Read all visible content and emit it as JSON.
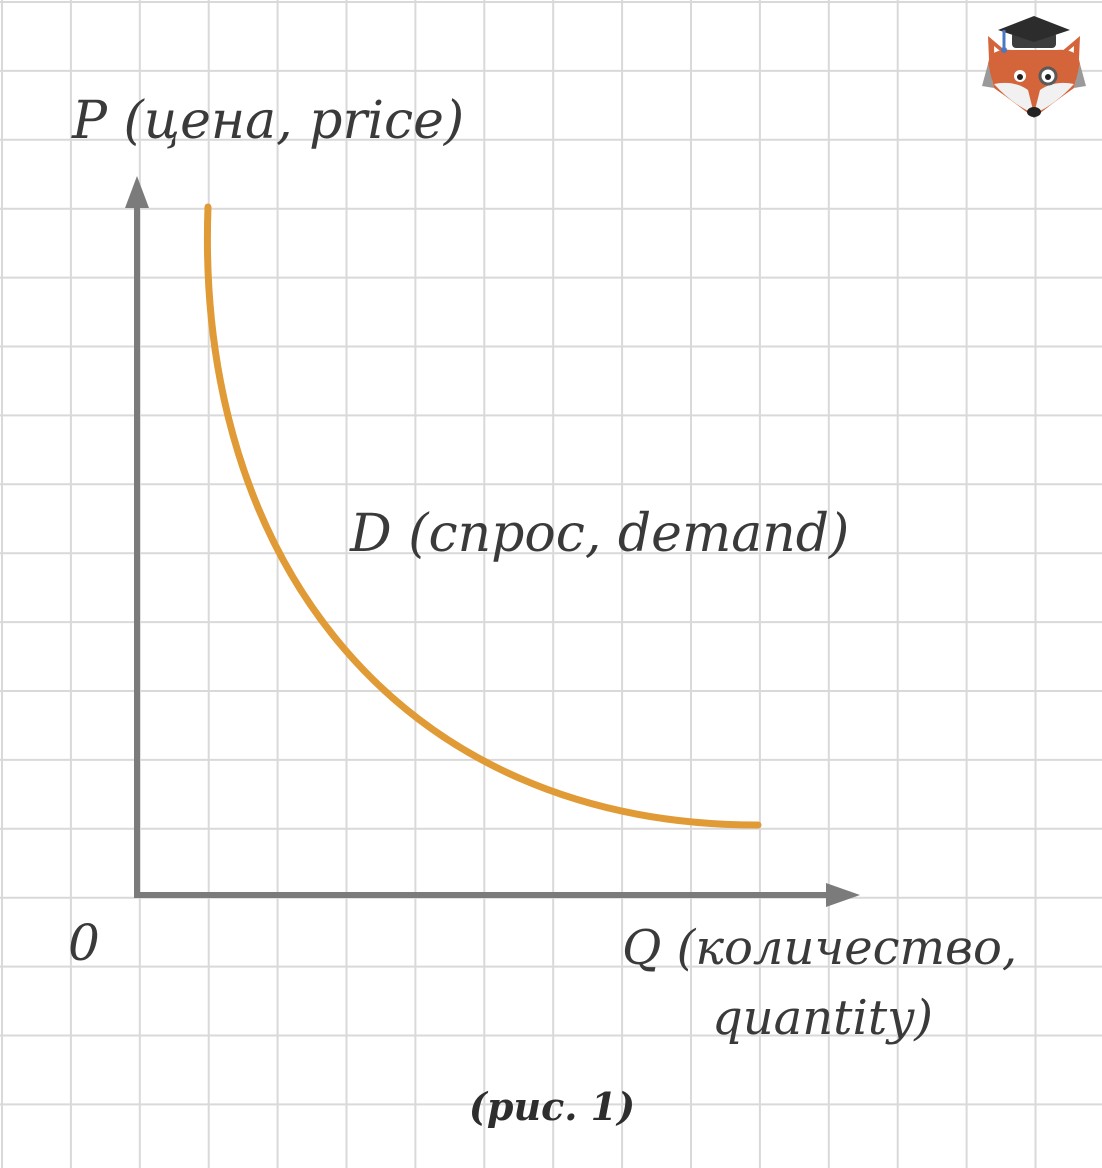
{
  "axes": {
    "y_label": "P (цена, price)",
    "x_label_line1": "Q (количество,",
    "x_label_line2": "quantity)",
    "origin": "0"
  },
  "curve": {
    "label": "D (спрос, demand)",
    "color": "#e09a36"
  },
  "caption": "(рис. 1)",
  "colors": {
    "grid": "#d9d9d9",
    "axis": "#7b7b7b",
    "text": "#3a3a3a"
  },
  "logo": {
    "icon": "fox-graduate-logo-icon"
  }
}
